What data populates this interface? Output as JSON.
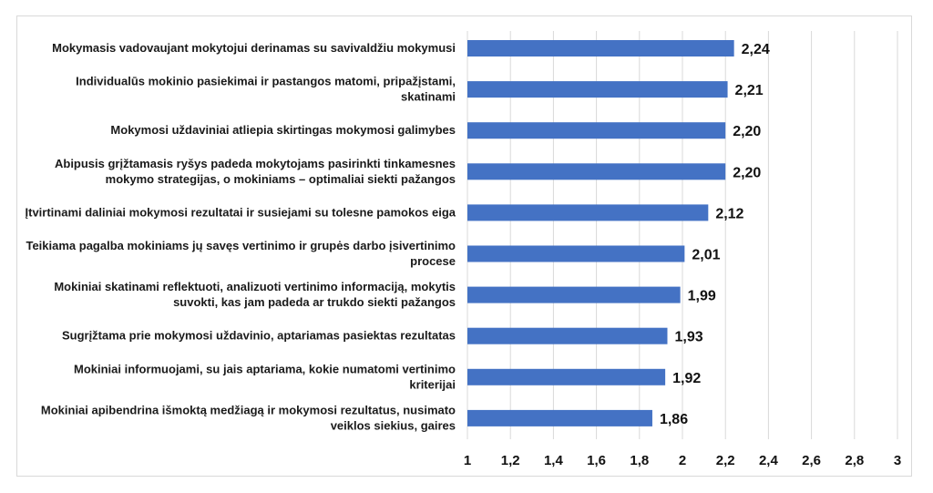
{
  "chart_data": {
    "type": "bar",
    "orientation": "horizontal",
    "categories": [
      [
        "Mokymasis vadovaujant mokytojui derinamas su savivaldžiu mokymusi"
      ],
      [
        "Individualūs mokinio pasiekimai ir pastangos matomi, pripažįstami,",
        "skatinami"
      ],
      [
        "Mokymosi uždaviniai atliepia skirtingas mokymosi galimybes"
      ],
      [
        "Abipusis grįžtamasis ryšys padeda mokytojams pasirinkti tinkamesnes",
        "mokymo strategijas, o mokiniams – optimaliai siekti pažangos"
      ],
      [
        "Įtvirtinami daliniai mokymosi rezultatai ir susiejami su tolesne pamokos eiga"
      ],
      [
        "Teikiama pagalba mokiniams jų savęs vertinimo ir grupės darbo įsivertinimo",
        "procese"
      ],
      [
        "Mokiniai skatinami reflektuoti, analizuoti vertinimo informaciją, mokytis",
        "suvokti, kas jam padeda ar trukdo siekti pažangos"
      ],
      [
        "Sugrįžtama prie mokymosi uždavinio, aptariamas pasiektas rezultatas"
      ],
      [
        "Mokiniai informuojami, su jais aptariama, kokie numatomi vertinimo",
        "kriterijai"
      ],
      [
        "Mokiniai apibendrina išmoktą medžiagą ir mokymosi rezultatus, nusimato",
        "veiklos siekius, gaires"
      ]
    ],
    "values": [
      2.24,
      2.21,
      2.2,
      2.2,
      2.12,
      2.01,
      1.99,
      1.93,
      1.92,
      1.86
    ],
    "value_labels": [
      "2,24",
      "2,21",
      "2,20",
      "2,20",
      "2,12",
      "2,01",
      "1,99",
      "1,93",
      "1,92",
      "1,86"
    ],
    "xlim": [
      1,
      3
    ],
    "ticks": [
      1,
      1.2,
      1.4,
      1.6,
      1.8,
      2,
      2.2,
      2.4,
      2.6,
      2.8,
      3
    ],
    "tick_labels": [
      "1",
      "1,2",
      "1,4",
      "1,6",
      "1,8",
      "2",
      "2,2",
      "2,4",
      "2,6",
      "2,8",
      "3"
    ],
    "grid": true,
    "legend": "none",
    "bar_color": "#4472c4",
    "grid_color": "#d9d9d9"
  }
}
